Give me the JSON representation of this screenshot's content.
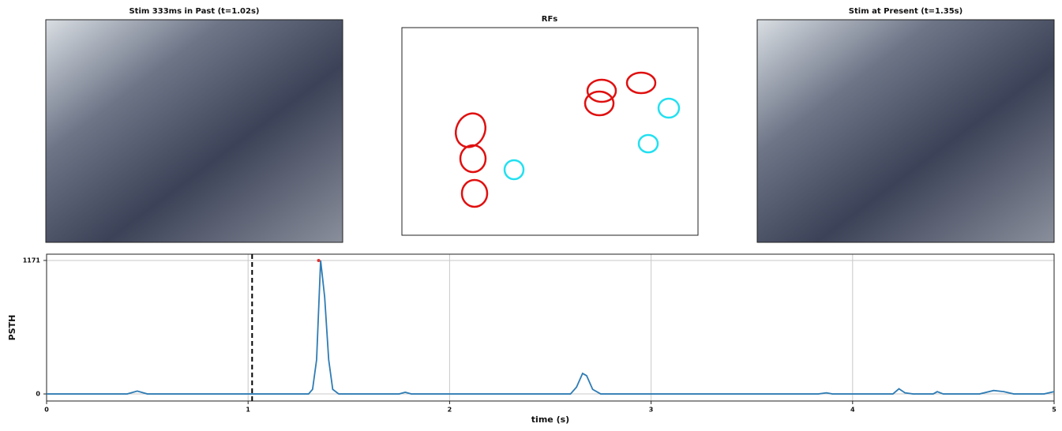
{
  "panels": {
    "past_title": "Stim 333ms in Past (t=1.02s)",
    "rf_title": "RFs",
    "present_title": "Stim at Present (t=1.35s)"
  },
  "chart_data": {
    "type": "line",
    "xlabel": "time (s)",
    "ylabel": "PSTH",
    "x": [
      0,
      0.4,
      0.45,
      0.5,
      1.3,
      1.32,
      1.34,
      1.36,
      1.38,
      1.4,
      1.42,
      1.45,
      1.75,
      1.78,
      1.81,
      2.6,
      2.63,
      2.66,
      2.68,
      2.71,
      2.75,
      3.83,
      3.87,
      3.9,
      4.2,
      4.23,
      4.26,
      4.3,
      4.4,
      4.42,
      4.45,
      4.63,
      4.7,
      4.75,
      4.8,
      4.95,
      5
    ],
    "series": [
      {
        "color": "#2f7cb4",
        "values": [
          0,
          0,
          25,
          0,
          0,
          40,
          300,
          1171,
          850,
          300,
          40,
          0,
          0,
          15,
          0,
          0,
          60,
          180,
          160,
          40,
          0,
          0,
          10,
          0,
          0,
          45,
          10,
          0,
          0,
          20,
          0,
          0,
          30,
          20,
          0,
          0,
          20
        ]
      }
    ],
    "xlim": [
      0,
      5
    ],
    "xticks": [
      0,
      1,
      2,
      3,
      4,
      5
    ],
    "ylim": [
      -62,
      1226
    ],
    "yticks": [
      0,
      1171
    ],
    "grid": true,
    "vline": 1.02,
    "peak": {
      "x": 1.35,
      "y": 1171,
      "color": "#e03030"
    }
  }
}
